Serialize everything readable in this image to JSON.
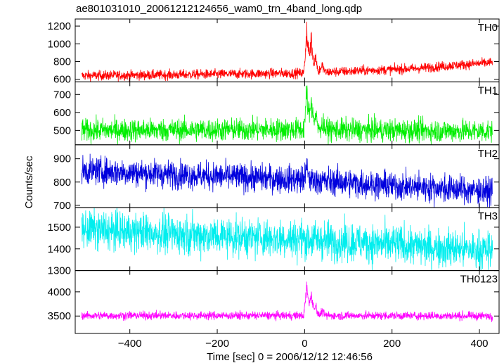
{
  "chart_data": {
    "type": "line",
    "title": "ae801031010_20061212124656_wam0_trn_4band_long.qdp",
    "xlabel": "Time [sec] 0 = 2006/12/12 12:46:56",
    "ylabel": "Counts/sec",
    "xlim": [
      -525,
      445
    ],
    "x_ticks": [
      -400,
      -200,
      0,
      200,
      400
    ],
    "x_tick_labels": [
      "−400",
      "−200",
      "0",
      "200",
      "400"
    ],
    "x_data_range": [
      -510,
      430
    ],
    "grid": false,
    "panels": [
      {
        "name": "TH0",
        "color": "#ff0000",
        "ylim": [
          570,
          1280
        ],
        "yticks": [
          600,
          800,
          1000,
          1200
        ],
        "baseline": [
          [
            -510,
            640
          ],
          [
            -300,
            650
          ],
          [
            0,
            670
          ],
          [
            100,
            690
          ],
          [
            250,
            720
          ],
          [
            430,
            790
          ]
        ],
        "noise": 28,
        "peaks": [
          [
            5,
            1250
          ],
          [
            15,
            1150
          ],
          [
            25,
            900
          ],
          [
            40,
            780
          ]
        ]
      },
      {
        "name": "TH1",
        "color": "#00ee00",
        "ylim": [
          420,
          770
        ],
        "yticks": [
          500,
          600,
          700
        ],
        "baseline": [
          [
            -510,
            500
          ],
          [
            0,
            505
          ],
          [
            430,
            495
          ]
        ],
        "noise": 32,
        "peaks": [
          [
            5,
            740
          ],
          [
            15,
            720
          ],
          [
            25,
            600
          ],
          [
            40,
            540
          ]
        ]
      },
      {
        "name": "TH2",
        "color": "#0000dd",
        "ylim": [
          690,
          960
        ],
        "yticks": [
          700,
          800,
          900
        ],
        "baseline": [
          [
            -510,
            850
          ],
          [
            -200,
            825
          ],
          [
            0,
            810
          ],
          [
            200,
            785
          ],
          [
            430,
            760
          ]
        ],
        "noise": 30,
        "peaks": [
          [
            5,
            880
          ]
        ]
      },
      {
        "name": "TH3",
        "color": "#00eeee",
        "ylim": [
          1300,
          1590
        ],
        "yticks": [
          1300,
          1400,
          1500
        ],
        "baseline": [
          [
            -510,
            1490
          ],
          [
            -200,
            1460
          ],
          [
            0,
            1445
          ],
          [
            200,
            1420
          ],
          [
            430,
            1390
          ]
        ],
        "noise": 45,
        "peaks": []
      },
      {
        "name": "TH0123",
        "color": "#ff00ff",
        "ylim": [
          3140,
          4440
        ],
        "yticks": [
          3500,
          4000
        ],
        "baseline": [
          [
            -510,
            3510
          ],
          [
            0,
            3510
          ],
          [
            430,
            3500
          ]
        ],
        "noise": 42,
        "peaks": [
          [
            5,
            4250
          ],
          [
            15,
            4100
          ],
          [
            25,
            3800
          ],
          [
            40,
            3620
          ]
        ]
      }
    ]
  }
}
